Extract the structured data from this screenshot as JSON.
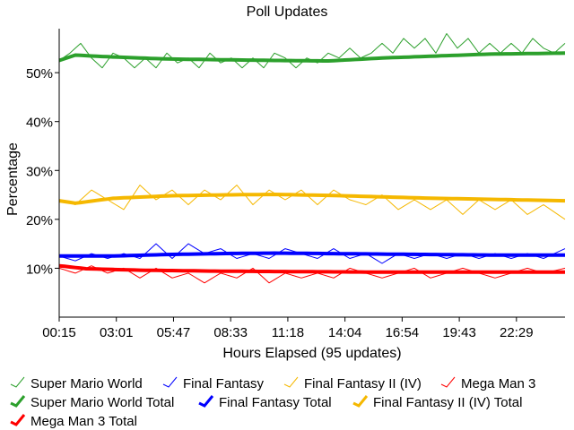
{
  "chart_data": {
    "type": "line",
    "title": "Poll Updates",
    "xlabel": "Hours Elapsed (95 updates)",
    "ylabel": "Percentage",
    "x_tick_labels": [
      "00:15",
      "03:01",
      "05:47",
      "08:33",
      "11:18",
      "14:04",
      "16:54",
      "19:43",
      "22:29"
    ],
    "y_tick_labels": [
      "10%",
      "20%",
      "30%",
      "40%",
      "50%"
    ],
    "y_ticks": [
      10,
      20,
      30,
      40,
      50
    ],
    "ylim": [
      0,
      59
    ],
    "update_count": 95,
    "grid": false,
    "legend_position": "bottom",
    "series": [
      {
        "name": "Super Mario World",
        "color": "#2ca02c",
        "style": "thin",
        "anchors": [
          [
            0,
            52.5
          ],
          [
            2,
            54
          ],
          [
            4,
            56
          ],
          [
            6,
            53
          ],
          [
            8,
            51
          ],
          [
            10,
            54
          ],
          [
            12,
            53
          ],
          [
            14,
            51
          ],
          [
            16,
            53
          ],
          [
            18,
            51
          ],
          [
            20,
            54
          ],
          [
            22,
            52
          ],
          [
            24,
            53
          ],
          [
            26,
            51
          ],
          [
            28,
            54
          ],
          [
            30,
            52
          ],
          [
            32,
            53
          ],
          [
            34,
            51
          ],
          [
            36,
            53
          ],
          [
            38,
            51
          ],
          [
            40,
            54
          ],
          [
            42,
            53
          ],
          [
            44,
            51
          ],
          [
            46,
            53
          ],
          [
            48,
            52
          ],
          [
            50,
            54
          ],
          [
            52,
            53
          ],
          [
            54,
            55
          ],
          [
            56,
            53
          ],
          [
            58,
            54
          ],
          [
            60,
            56
          ],
          [
            62,
            54
          ],
          [
            64,
            57
          ],
          [
            66,
            55
          ],
          [
            68,
            57
          ],
          [
            70,
            54
          ],
          [
            72,
            58
          ],
          [
            74,
            55
          ],
          [
            76,
            57
          ],
          [
            78,
            54
          ],
          [
            80,
            56
          ],
          [
            82,
            54
          ],
          [
            84,
            56
          ],
          [
            86,
            54
          ],
          [
            88,
            57
          ],
          [
            90,
            55
          ],
          [
            92,
            54
          ],
          [
            94,
            56
          ]
        ]
      },
      {
        "name": "Final Fantasy",
        "color": "#0000ff",
        "style": "thin",
        "anchors": [
          [
            0,
            12.5
          ],
          [
            3,
            11.5
          ],
          [
            6,
            13
          ],
          [
            9,
            12
          ],
          [
            12,
            13
          ],
          [
            15,
            12
          ],
          [
            18,
            15
          ],
          [
            21,
            12
          ],
          [
            24,
            15
          ],
          [
            27,
            13
          ],
          [
            30,
            14
          ],
          [
            33,
            12
          ],
          [
            36,
            13
          ],
          [
            39,
            12
          ],
          [
            42,
            14
          ],
          [
            45,
            13
          ],
          [
            48,
            12
          ],
          [
            51,
            14
          ],
          [
            54,
            12
          ],
          [
            57,
            13
          ],
          [
            60,
            11
          ],
          [
            63,
            13
          ],
          [
            66,
            12
          ],
          [
            69,
            13
          ],
          [
            72,
            12
          ],
          [
            75,
            13
          ],
          [
            78,
            12
          ],
          [
            81,
            13
          ],
          [
            84,
            12
          ],
          [
            87,
            13
          ],
          [
            90,
            12
          ],
          [
            94,
            14
          ]
        ]
      },
      {
        "name": "Final Fantasy II (IV)",
        "color": "#f5b800",
        "style": "thin",
        "anchors": [
          [
            0,
            24
          ],
          [
            3,
            23
          ],
          [
            6,
            26
          ],
          [
            9,
            24
          ],
          [
            12,
            22
          ],
          [
            15,
            27
          ],
          [
            18,
            24
          ],
          [
            21,
            26
          ],
          [
            24,
            23
          ],
          [
            27,
            26
          ],
          [
            30,
            24
          ],
          [
            33,
            27
          ],
          [
            36,
            23
          ],
          [
            39,
            26
          ],
          [
            42,
            24
          ],
          [
            45,
            26
          ],
          [
            48,
            23
          ],
          [
            51,
            26
          ],
          [
            54,
            24
          ],
          [
            57,
            23
          ],
          [
            60,
            25
          ],
          [
            63,
            22
          ],
          [
            66,
            24
          ],
          [
            69,
            22
          ],
          [
            72,
            24
          ],
          [
            75,
            21
          ],
          [
            78,
            24
          ],
          [
            81,
            22
          ],
          [
            84,
            24
          ],
          [
            87,
            21
          ],
          [
            90,
            23
          ],
          [
            94,
            20
          ]
        ]
      },
      {
        "name": "Mega Man 3",
        "color": "#ff0000",
        "style": "thin",
        "anchors": [
          [
            0,
            10
          ],
          [
            3,
            9
          ],
          [
            6,
            10.5
          ],
          [
            9,
            9
          ],
          [
            12,
            10
          ],
          [
            15,
            8
          ],
          [
            18,
            10
          ],
          [
            21,
            8
          ],
          [
            24,
            9
          ],
          [
            27,
            7
          ],
          [
            30,
            9
          ],
          [
            33,
            8
          ],
          [
            36,
            10
          ],
          [
            39,
            7
          ],
          [
            42,
            9
          ],
          [
            45,
            8
          ],
          [
            48,
            9
          ],
          [
            51,
            8
          ],
          [
            54,
            10
          ],
          [
            57,
            9
          ],
          [
            60,
            8
          ],
          [
            63,
            9
          ],
          [
            66,
            10
          ],
          [
            69,
            8
          ],
          [
            72,
            9
          ],
          [
            75,
            10
          ],
          [
            78,
            9
          ],
          [
            81,
            8
          ],
          [
            84,
            9
          ],
          [
            87,
            10
          ],
          [
            90,
            9
          ],
          [
            94,
            10
          ]
        ]
      },
      {
        "name": "Super Mario World Total",
        "color": "#2ca02c",
        "style": "thick",
        "anchors": [
          [
            0,
            52.5
          ],
          [
            3,
            53.6
          ],
          [
            8,
            53.3
          ],
          [
            20,
            52.8
          ],
          [
            40,
            52.5
          ],
          [
            50,
            52.4
          ],
          [
            60,
            53
          ],
          [
            70,
            53.4
          ],
          [
            80,
            53.8
          ],
          [
            94,
            54
          ]
        ]
      },
      {
        "name": "Final Fantasy Total",
        "color": "#0000ff",
        "style": "thick",
        "anchors": [
          [
            0,
            12.5
          ],
          [
            10,
            12.5
          ],
          [
            20,
            12.8
          ],
          [
            30,
            13
          ],
          [
            40,
            13.1
          ],
          [
            50,
            13
          ],
          [
            60,
            12.9
          ],
          [
            70,
            12.8
          ],
          [
            80,
            12.7
          ],
          [
            94,
            12.7
          ]
        ]
      },
      {
        "name": "Final Fantasy II (IV) Total",
        "color": "#f5b800",
        "style": "thick",
        "anchors": [
          [
            0,
            23.8
          ],
          [
            3,
            23.3
          ],
          [
            10,
            24.3
          ],
          [
            20,
            24.8
          ],
          [
            30,
            25
          ],
          [
            40,
            25.1
          ],
          [
            50,
            24.9
          ],
          [
            60,
            24.6
          ],
          [
            70,
            24.3
          ],
          [
            80,
            24.1
          ],
          [
            94,
            23.8
          ]
        ]
      },
      {
        "name": "Mega Man 3 Total",
        "color": "#ff0000",
        "style": "thick",
        "anchors": [
          [
            0,
            10.5
          ],
          [
            5,
            9.9
          ],
          [
            15,
            9.6
          ],
          [
            30,
            9.4
          ],
          [
            45,
            9.3
          ],
          [
            60,
            9.2
          ],
          [
            75,
            9.2
          ],
          [
            94,
            9.2
          ]
        ]
      }
    ]
  }
}
